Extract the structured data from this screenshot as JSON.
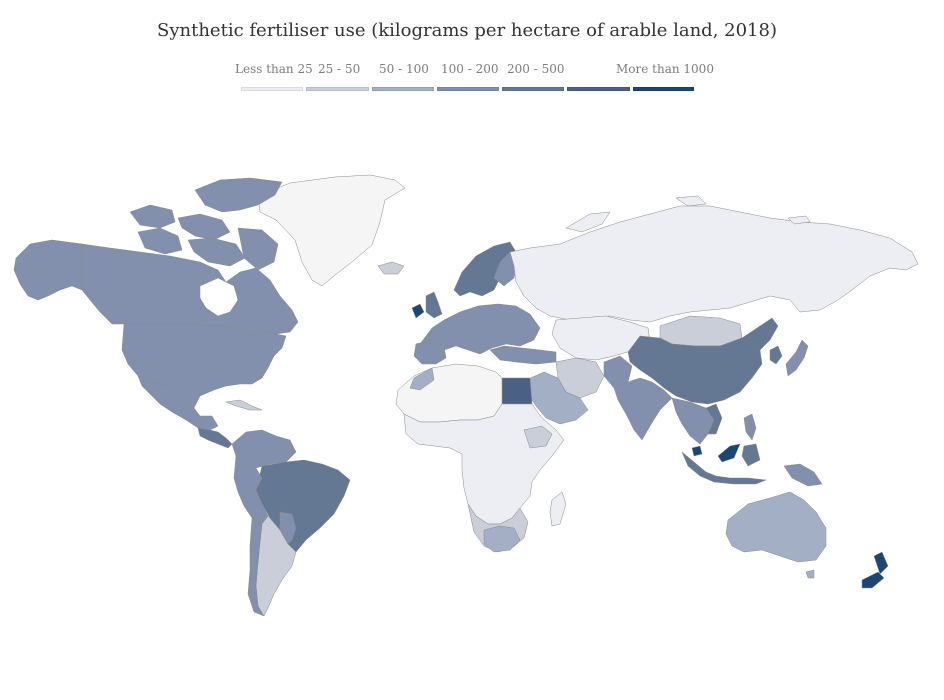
{
  "title": "Synthetic fertiliser use (kilograms per hectare of arable land, 2018)",
  "legend": [
    {
      "label": "Less than 25",
      "color": "#eceef4"
    },
    {
      "label": "25 - 50",
      "color": "#c9ced9"
    },
    {
      "label": "50 - 100",
      "color": "#a3afc5"
    },
    {
      "label": "100 - 200",
      "color": "#8290ad"
    },
    {
      "label": "200 - 500",
      "color": "#647894"
    },
    {
      "label": "",
      "color": "#4a6185"
    },
    {
      "label": "More than 1000",
      "color": "#1c4674"
    }
  ],
  "no_data_color": "#f5f5f5"
}
